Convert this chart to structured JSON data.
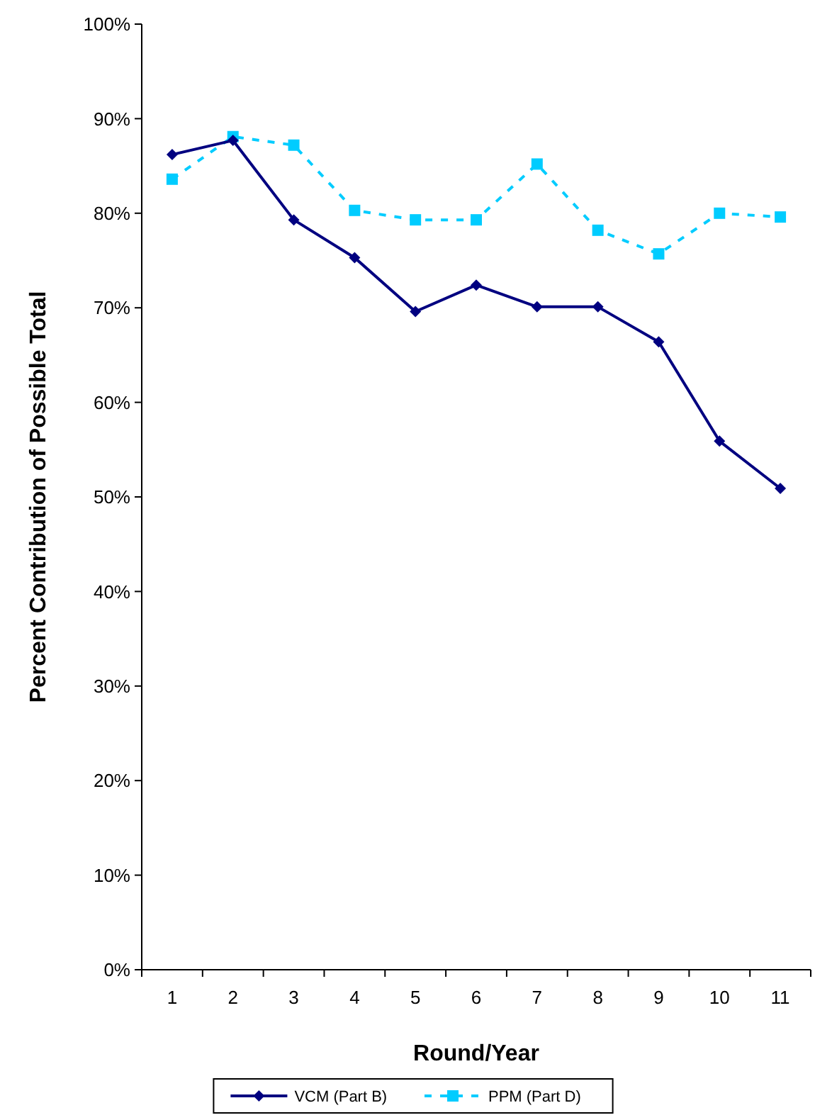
{
  "chart_data": {
    "type": "line",
    "xlabel": "Round/Year",
    "ylabel": "Percent Contribution of Possible Total",
    "categories": [
      "1",
      "2",
      "3",
      "4",
      "5",
      "6",
      "7",
      "8",
      "9",
      "10",
      "11"
    ],
    "series": [
      {
        "name": "VCM (Part B)",
        "color": "#000080",
        "marker": "diamond",
        "line_style": "solid",
        "values": [
          86.2,
          87.7,
          79.3,
          75.3,
          69.6,
          72.4,
          70.1,
          70.1,
          66.4,
          55.9,
          50.9
        ]
      },
      {
        "name": "PPM (Part D)",
        "color": "#00ccff",
        "marker": "square",
        "line_style": "dashed",
        "values": [
          83.6,
          88.1,
          87.2,
          80.3,
          79.3,
          79.3,
          85.2,
          78.2,
          75.7,
          80.0,
          79.6
        ]
      }
    ],
    "ylim": [
      0,
      100
    ],
    "yticks": [
      {
        "value": 0,
        "label": "0%"
      },
      {
        "value": 10,
        "label": "10%"
      },
      {
        "value": 20,
        "label": "20%"
      },
      {
        "value": 30,
        "label": "30%"
      },
      {
        "value": 40,
        "label": "40%"
      },
      {
        "value": 50,
        "label": "50%"
      },
      {
        "value": 60,
        "label": "60%"
      },
      {
        "value": 70,
        "label": "70%"
      },
      {
        "value": 80,
        "label": "80%"
      },
      {
        "value": 90,
        "label": "90%"
      },
      {
        "value": 100,
        "label": "100%"
      }
    ],
    "grid": false,
    "legend": "bottom"
  }
}
